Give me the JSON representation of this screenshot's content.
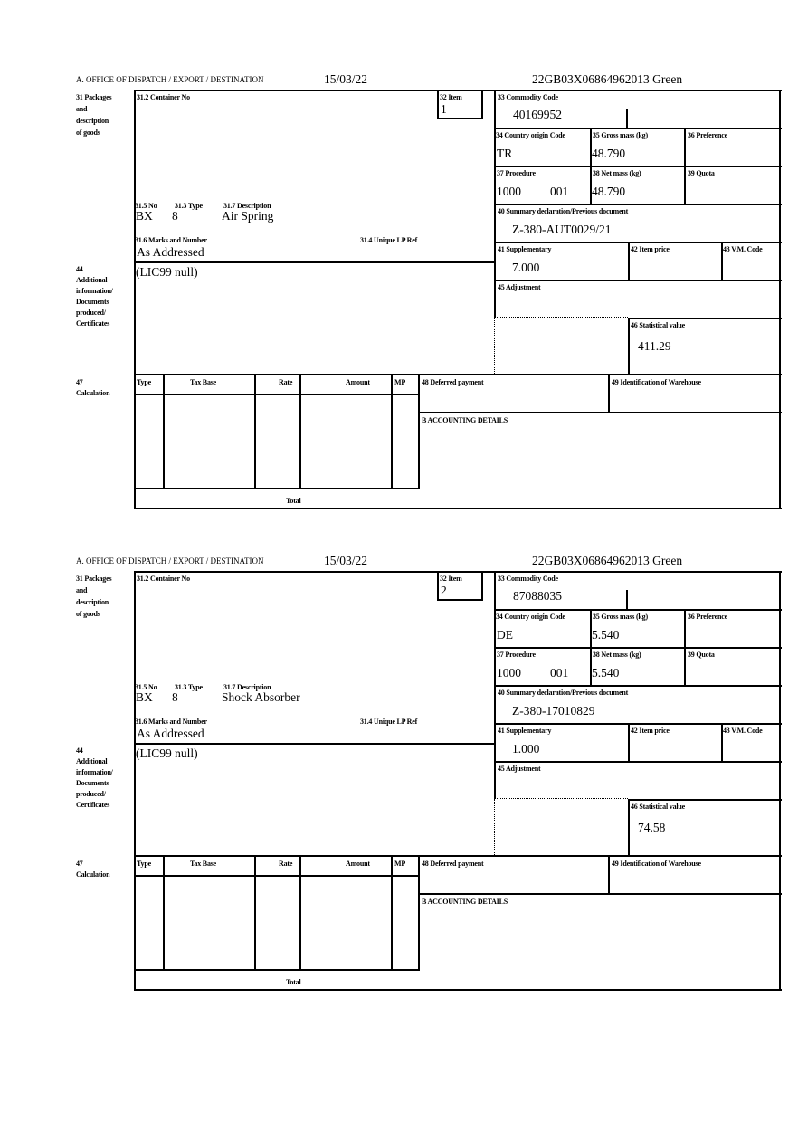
{
  "form": {
    "office_label": "A.  OFFICE OF DISPATCH / EXPORT / DESTINATION",
    "labels": {
      "packages": [
        "31 Packages",
        "and",
        "description",
        "of goods"
      ],
      "container_no": "31.2 Container No",
      "item": "32 Item",
      "no": "31.5 No",
      "type": "31.3 Type",
      "description": "31.7 Description",
      "marks": "31.6 Marks and Number",
      "unique_ref": "31.4 Unique LP Ref",
      "additional": [
        "44",
        "Additional",
        "information/",
        "Documents",
        "produced/",
        "Certificates"
      ],
      "commodity_code": "33 Commodity Code",
      "country_origin": "34 Country origin Code",
      "gross_mass": "35 Gross mass (kg)",
      "preference": "36 Preference",
      "procedure": "37 Procedure",
      "net_mass": "38 Net mass (kg)",
      "quota": "39 Quota",
      "summary_decl": "40 Summary declaration/Previous document",
      "supplementary": "41 Supplementary",
      "item_price": "42 Item price",
      "vm_code": "43 V.M. Code",
      "adjustment": "45 Adjustment",
      "statistical_value": "46 Statistical value",
      "calculation": [
        "47",
        "Calculation"
      ],
      "calc_cols": [
        "Type",
        "Tax Base",
        "Rate",
        "Amount",
        "MP"
      ],
      "total": "Total",
      "deferred_payment": "48 Deferred payment",
      "warehouse": "49 Identification of Warehouse",
      "accounting": "B ACCOUNTING DETAILS"
    }
  },
  "items": [
    {
      "date": "15/03/22",
      "reference": "22GB03X06864962013    Green",
      "item_no": "1",
      "package_no": "BX",
      "package_type": "8",
      "description": "Air Spring",
      "marks": "As Addressed",
      "additional_info": "(LIC99 null)",
      "commodity_code": "40169952",
      "country_origin": "TR",
      "gross_mass": "48.790",
      "procedure_1": "1000",
      "procedure_2": "001",
      "net_mass": "48.790",
      "previous_document": "Z-380-AUT0029/21",
      "supplementary": "7.000",
      "statistical_value": "411.29"
    },
    {
      "date": "15/03/22",
      "reference": "22GB03X06864962013    Green",
      "item_no": "2",
      "package_no": "BX",
      "package_type": "8",
      "description": "Shock Absorber",
      "marks": "As Addressed",
      "additional_info": "(LIC99 null)",
      "commodity_code": "87088035",
      "country_origin": "DE",
      "gross_mass": "5.540",
      "procedure_1": "1000",
      "procedure_2": "001",
      "net_mass": "5.540",
      "previous_document": "Z-380-17010829",
      "supplementary": "1.000",
      "statistical_value": "74.58"
    }
  ]
}
